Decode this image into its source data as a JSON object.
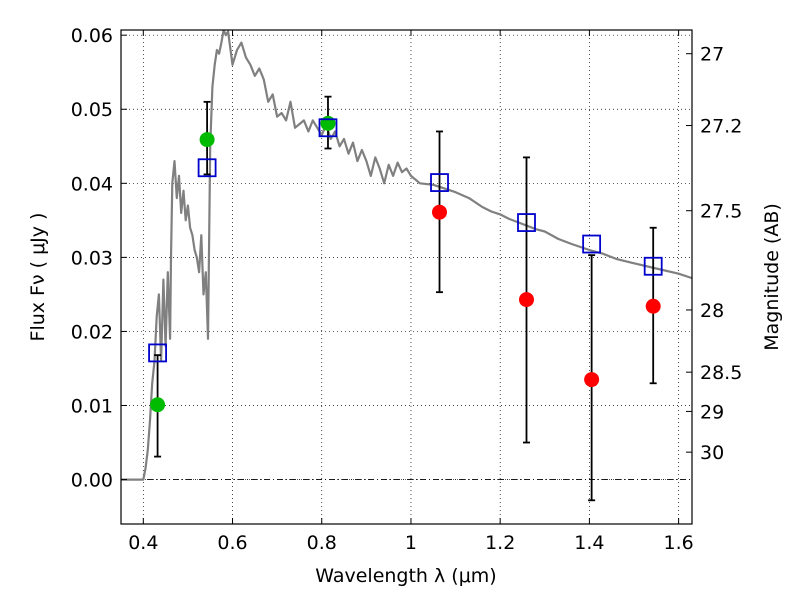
{
  "chart_data": {
    "type": "scatter",
    "xlabel": "Wavelength  λ (μm)",
    "ylabel": "Flux  Fν  ( μJy )",
    "ylabel_right": "Magnitude (AB)",
    "xlim": [
      0.35,
      1.63
    ],
    "ylim": [
      -0.006,
      0.0607
    ],
    "grid": true,
    "x_ticks": [
      0.4,
      0.6,
      0.8,
      1.0,
      1.2,
      1.4,
      1.6
    ],
    "x_tick_labels": [
      "0.4",
      "0.6",
      "0.8",
      "1",
      "1.2",
      "1.4",
      "1.6"
    ],
    "y_ticks": [
      0.0,
      0.01,
      0.02,
      0.03,
      0.04,
      0.05,
      0.06
    ],
    "y_tick_labels": [
      "0.00",
      "0.01",
      "0.02",
      "0.03",
      "0.04",
      "0.05",
      "0.06"
    ],
    "right_ticks": [
      {
        "flux": 0.0575,
        "label": "27"
      },
      {
        "flux": 0.0478,
        "label": "27.2"
      },
      {
        "flux": 0.0363,
        "label": "27.5"
      },
      {
        "flux": 0.0229,
        "label": "28"
      },
      {
        "flux": 0.0145,
        "label": "28.5"
      },
      {
        "flux": 0.0092,
        "label": "29"
      },
      {
        "flux": 0.0037,
        "label": "30"
      }
    ],
    "series": [
      {
        "style": "line",
        "color": "#808080",
        "x": [
          0.35,
          0.4,
          0.405,
          0.41,
          0.415,
          0.42,
          0.425,
          0.43,
          0.435,
          0.44,
          0.445,
          0.45,
          0.455,
          0.46,
          0.462,
          0.465,
          0.47,
          0.475,
          0.48,
          0.485,
          0.49,
          0.495,
          0.5,
          0.505,
          0.51,
          0.515,
          0.52,
          0.525,
          0.53,
          0.535,
          0.54,
          0.545,
          0.55,
          0.555,
          0.56,
          0.565,
          0.57,
          0.575,
          0.58,
          0.585,
          0.59,
          0.6,
          0.61,
          0.62,
          0.63,
          0.64,
          0.65,
          0.66,
          0.67,
          0.68,
          0.69,
          0.7,
          0.71,
          0.72,
          0.73,
          0.74,
          0.75,
          0.76,
          0.77,
          0.78,
          0.79,
          0.8,
          0.81,
          0.82,
          0.83,
          0.84,
          0.85,
          0.86,
          0.87,
          0.88,
          0.89,
          0.9,
          0.91,
          0.92,
          0.93,
          0.94,
          0.95,
          0.96,
          0.97,
          0.98,
          0.99,
          1.0,
          1.02,
          1.05,
          1.08,
          1.1,
          1.13,
          1.16,
          1.18,
          1.2,
          1.22,
          1.25,
          1.28,
          1.3,
          1.33,
          1.36,
          1.4,
          1.43,
          1.46,
          1.5,
          1.55,
          1.6,
          1.63
        ],
        "y": [
          0.0,
          0.0,
          0.0015,
          0.004,
          0.008,
          0.013,
          0.016,
          0.022,
          0.025,
          0.016,
          0.027,
          0.018,
          0.028,
          0.019,
          0.03,
          0.04,
          0.043,
          0.038,
          0.041,
          0.036,
          0.039,
          0.035,
          0.037,
          0.034,
          0.033,
          0.031,
          0.03,
          0.028,
          0.033,
          0.025,
          0.028,
          0.019,
          0.045,
          0.053,
          0.056,
          0.058,
          0.0575,
          0.059,
          0.0607,
          0.06,
          0.0605,
          0.056,
          0.058,
          0.059,
          0.057,
          0.056,
          0.0545,
          0.0555,
          0.054,
          0.051,
          0.052,
          0.049,
          0.0495,
          0.0485,
          0.051,
          0.0475,
          0.048,
          0.0485,
          0.047,
          0.0485,
          0.0475,
          0.0465,
          0.048,
          0.046,
          0.047,
          0.045,
          0.046,
          0.044,
          0.0455,
          0.043,
          0.0445,
          0.043,
          0.041,
          0.0435,
          0.042,
          0.04,
          0.0425,
          0.041,
          0.0428,
          0.0415,
          0.042,
          0.041,
          0.04,
          0.0398,
          0.0392,
          0.0388,
          0.038,
          0.0368,
          0.0362,
          0.0358,
          0.0352,
          0.0345,
          0.0338,
          0.0335,
          0.0325,
          0.0318,
          0.031,
          0.0305,
          0.0298,
          0.0292,
          0.0285,
          0.0278,
          0.0272
        ]
      },
      {
        "style": "errorbar",
        "color": "#000000",
        "x": [
          0.432,
          0.543,
          0.814,
          1.064,
          1.259,
          1.405,
          1.543
        ],
        "y_low": [
          0.0031,
          0.0412,
          0.0447,
          0.0253,
          0.005,
          -0.0028,
          0.013
        ],
        "y_high": [
          0.0168,
          0.051,
          0.0517,
          0.047,
          0.0435,
          0.0303,
          0.034
        ]
      },
      {
        "style": "marker",
        "marker": "circle",
        "color": "#00bb00",
        "x": [
          0.432,
          0.543,
          0.814
        ],
        "y": [
          0.0101,
          0.0459,
          0.0481
        ]
      },
      {
        "style": "marker",
        "marker": "circle",
        "color": "#ff0000",
        "x": [
          1.064,
          1.259,
          1.405,
          1.543
        ],
        "y": [
          0.0361,
          0.0243,
          0.0135,
          0.0234
        ]
      },
      {
        "style": "marker",
        "marker": "open-square",
        "color": "#0000cc",
        "x": [
          0.432,
          0.543,
          0.814,
          1.064,
          1.259,
          1.405,
          1.543
        ],
        "y": [
          0.0171,
          0.0421,
          0.0475,
          0.0401,
          0.0347,
          0.0318,
          0.0288
        ]
      }
    ],
    "reference_line": {
      "y": 0.0,
      "style": "dash-dot",
      "color": "#000000"
    }
  }
}
